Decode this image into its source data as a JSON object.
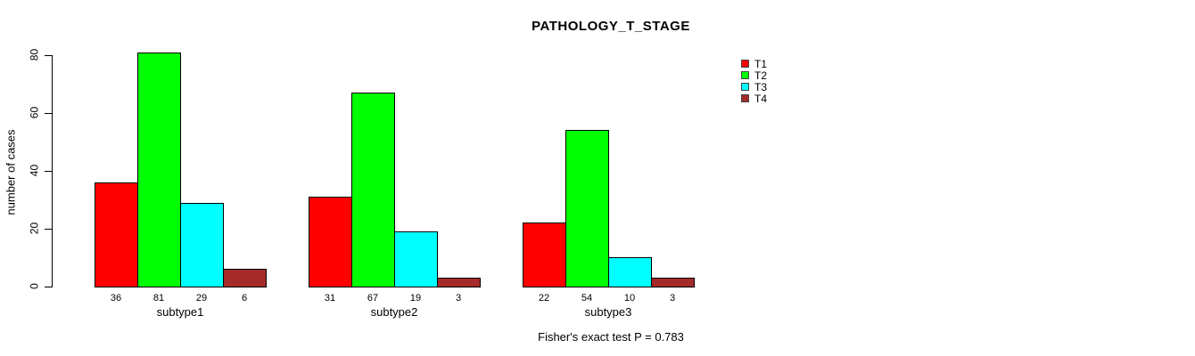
{
  "chart_data": {
    "type": "bar",
    "title": "PATHOLOGY_T_STAGE",
    "xlabel": "",
    "ylabel": "number of cases",
    "categories": [
      "subtype1",
      "subtype2",
      "subtype3"
    ],
    "series": [
      {
        "name": "T1",
        "color": "#FF0000",
        "values": [
          36,
          31,
          22
        ]
      },
      {
        "name": "T2",
        "color": "#00FF00",
        "values": [
          81,
          67,
          54
        ]
      },
      {
        "name": "T3",
        "color": "#00FFFF",
        "values": [
          29,
          19,
          10
        ]
      },
      {
        "name": "T4",
        "color": "#A52A2A",
        "values": [
          6,
          3,
          3
        ]
      }
    ],
    "bar_value_labels": [
      [
        36,
        81,
        29,
        6
      ],
      [
        31,
        67,
        19,
        3
      ],
      [
        22,
        54,
        10,
        3
      ]
    ],
    "ylim": [
      0,
      80
    ],
    "yticks": [
      0,
      20,
      40,
      60,
      80
    ],
    "grid": false,
    "legend_position": "right",
    "legend_entries": [
      "T1",
      "T2",
      "T3",
      "T4"
    ],
    "annotation": "Fisher's exact test P = 0.783"
  },
  "colors": {
    "t1": "#FF0000",
    "t2": "#00FF00",
    "t3": "#00FFFF",
    "t4": "#A52A2A",
    "axis": "#000000",
    "background": "#FFFFFF"
  }
}
